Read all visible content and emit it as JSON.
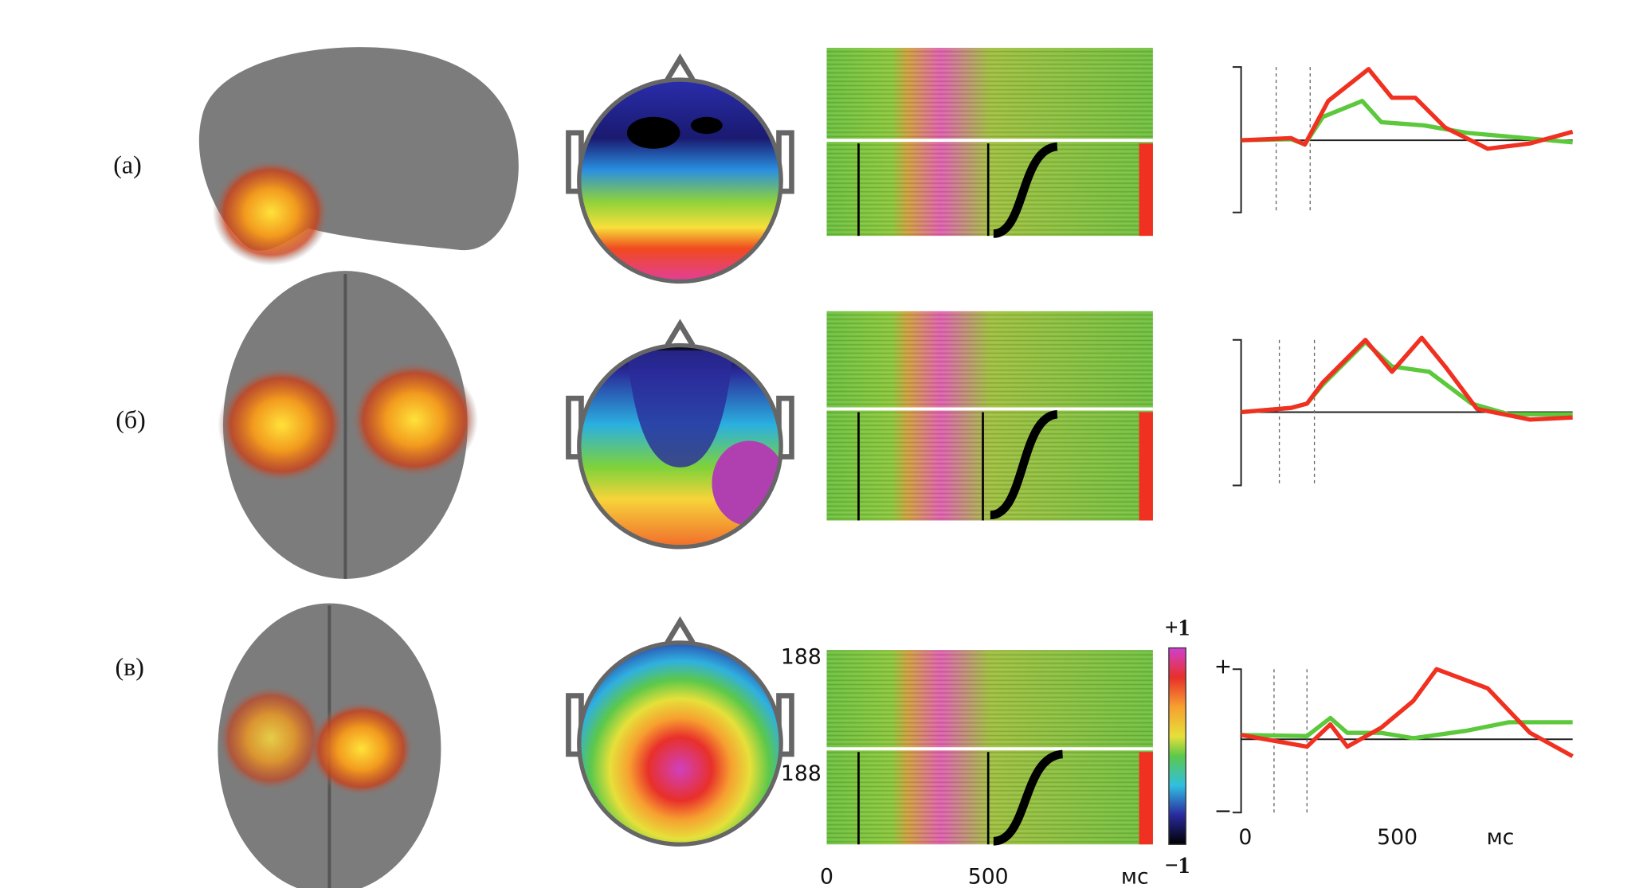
{
  "rows": [
    {
      "label": "(а)"
    },
    {
      "label": "(б)"
    },
    {
      "label": "(в)"
    }
  ],
  "erp_image": {
    "trial_labels": [
      "188",
      "188"
    ],
    "x_labels": [
      "0",
      "500",
      "мс"
    ]
  },
  "colorbar": {
    "max": "+1",
    "min": "−1"
  },
  "erp": {
    "y_labels": [
      "+",
      "−"
    ],
    "x_labels": [
      "0",
      "500",
      "мс"
    ]
  }
}
